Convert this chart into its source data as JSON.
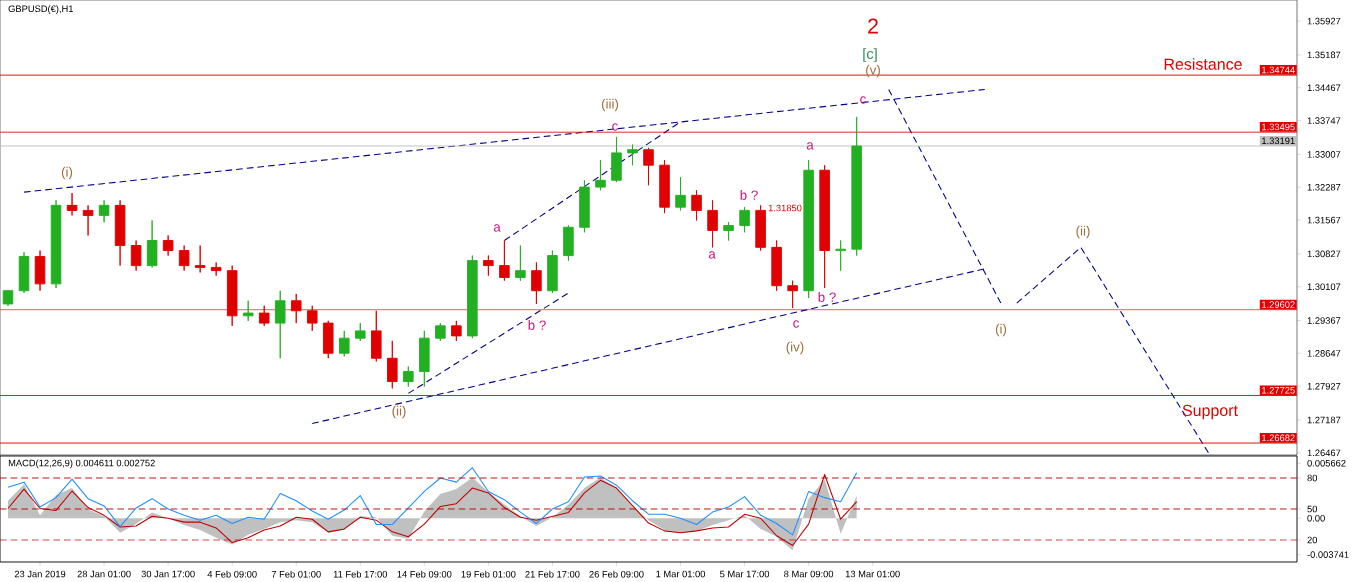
{
  "chart_data": [
    {
      "type": "candlestick",
      "title": "GBPUSD(€),H1",
      "categories": [
        null,
        null,
        null,
        null,
        null,
        null,
        null,
        null,
        null,
        null,
        null,
        null,
        null,
        null,
        null,
        null,
        null,
        null,
        null,
        null,
        null,
        null,
        null,
        null,
        null,
        null,
        null,
        null,
        null,
        null,
        null,
        null,
        null,
        null,
        null,
        null,
        null,
        null,
        null,
        null,
        null,
        null,
        null,
        null,
        null,
        null,
        null,
        null,
        null,
        null,
        null,
        null,
        null,
        null,
        null,
        null,
        null,
        null,
        null,
        null,
        null,
        null,
        null,
        null,
        null,
        null,
        null,
        null,
        null,
        null,
        null,
        null,
        null,
        null,
        null,
        null,
        null,
        null,
        null,
        null,
        null
      ],
      "ohlc": [
        [
          1.2973,
          1.3002,
          1.2969,
          1.3002
        ],
        [
          1.3002,
          1.3086,
          1.2997,
          1.3077
        ],
        [
          1.3077,
          1.309,
          1.3002,
          1.3017
        ],
        [
          1.3017,
          1.32,
          1.3008,
          1.3189
        ],
        [
          1.3189,
          1.3216,
          1.3167,
          1.3178
        ],
        [
          1.3178,
          1.3189,
          1.3123,
          1.3167
        ],
        [
          1.3167,
          1.32,
          1.3152,
          1.3189
        ],
        [
          1.3189,
          1.32,
          1.3057,
          1.3101
        ],
        [
          1.3101,
          1.3112,
          1.3046,
          1.3057
        ],
        [
          1.3057,
          1.3156,
          1.3053,
          1.3112
        ],
        [
          1.3112,
          1.3123,
          1.3079,
          1.309
        ],
        [
          1.309,
          1.3101,
          1.3046,
          1.3057
        ],
        [
          1.3057,
          1.3101,
          1.3042,
          1.3053
        ],
        [
          1.3053,
          1.3064,
          1.3035,
          1.3046
        ],
        [
          1.3046,
          1.3057,
          1.2925,
          1.2947
        ],
        [
          1.2947,
          1.298,
          1.2936,
          1.2953
        ],
        [
          1.2953,
          1.2969,
          1.2925,
          1.2931
        ],
        [
          1.2931,
          1.3002,
          1.2854,
          1.298
        ],
        [
          1.298,
          1.2995,
          1.2931,
          1.2958
        ],
        [
          1.2958,
          1.2969,
          1.2914,
          1.2931
        ],
        [
          1.2931,
          1.2936,
          1.2854,
          1.2865
        ],
        [
          1.2865,
          1.2914,
          1.2858,
          1.2898
        ],
        [
          1.2898,
          1.2931,
          1.2892,
          1.2914
        ],
        [
          1.2914,
          1.2958,
          1.2847,
          1.2854
        ],
        [
          1.2854,
          1.2892,
          1.2788,
          1.2803
        ],
        [
          1.2803,
          1.2836,
          1.2792,
          1.2825
        ],
        [
          1.2825,
          1.2914,
          1.2792,
          1.2898
        ],
        [
          1.2898,
          1.2931,
          1.2892,
          1.2925
        ],
        [
          1.2925,
          1.2936,
          1.2892,
          1.2903
        ],
        [
          1.2903,
          1.3079,
          1.2898,
          1.3068
        ],
        [
          1.3068,
          1.3079,
          1.3035,
          1.3057
        ],
        [
          1.3057,
          1.3112,
          1.3024,
          1.3031
        ],
        [
          1.3031,
          1.3101,
          1.3024,
          1.3046
        ],
        [
          1.3046,
          1.3064,
          1.2973,
          1.3002
        ],
        [
          1.3002,
          1.309,
          1.2997,
          1.3079
        ],
        [
          1.3079,
          1.3145,
          1.3068,
          1.3141
        ],
        [
          1.3141,
          1.3244,
          1.313,
          1.3229
        ],
        [
          1.3229,
          1.3288,
          1.3222,
          1.3244
        ],
        [
          1.3244,
          1.3339,
          1.324,
          1.3304
        ],
        [
          1.3304,
          1.3322,
          1.3277,
          1.3311
        ],
        [
          1.3311,
          1.3315,
          1.3233,
          1.3277
        ],
        [
          1.3277,
          1.3288,
          1.3172,
          1.3185
        ],
        [
          1.3185,
          1.3251,
          1.3178,
          1.3211
        ],
        [
          1.3211,
          1.3222,
          1.3156,
          1.3178
        ],
        [
          1.3178,
          1.32,
          1.3097,
          1.3134
        ],
        [
          1.3134,
          1.3152,
          1.3112,
          1.3145
        ],
        [
          1.3145,
          1.3185,
          1.313,
          1.3178
        ],
        [
          1.3178,
          1.3189,
          1.309,
          1.3097
        ],
        [
          1.3097,
          1.3112,
          1.3002,
          1.3013
        ],
        [
          1.3013,
          1.3024,
          1.2964,
          1.3002
        ],
        [
          1.3002,
          1.3288,
          1.2986,
          1.3266
        ],
        [
          1.3266,
          1.3277,
          1.3008,
          1.309
        ],
        [
          1.309,
          1.3112,
          1.3046,
          1.3093
        ],
        [
          1.3093,
          1.3383,
          1.3079,
          1.3319
        ],
        null,
        null,
        null,
        null,
        null,
        null,
        null,
        null,
        null,
        null,
        null,
        null,
        null,
        null,
        null,
        null,
        null,
        null,
        null,
        null,
        null,
        null,
        null,
        null,
        null,
        null,
        null
      ],
      "ylim": [
        1.2642,
        1.3639
      ],
      "yticks": [
        1.35927,
        1.35187,
        1.34467,
        1.33747,
        1.33007,
        1.32287,
        1.31567,
        1.30827,
        1.30107,
        1.29367,
        1.28647,
        1.27927,
        1.27187,
        1.26467
      ],
      "tick_labels": "y",
      "line_style": "dashed",
      "series": [
        {
          "type": "line",
          "color": "#00008b",
          "values": [
            null,
            1.3218,
            null,
            null,
            null,
            null,
            null,
            null,
            null,
            null,
            null,
            null,
            null,
            null,
            null,
            null,
            null,
            null,
            null,
            null,
            null,
            null,
            null,
            null,
            null,
            null,
            null,
            null,
            null,
            null,
            null,
            null,
            null,
            null,
            null,
            null,
            null,
            null,
            null,
            null,
            null,
            null,
            null,
            null,
            null,
            null,
            null,
            null,
            null,
            null,
            null,
            null,
            null,
            null,
            null,
            null,
            null,
            null,
            null,
            null,
            null,
            1.3443,
            null,
            null,
            null,
            null,
            null,
            null,
            null,
            null,
            null,
            null,
            null,
            null,
            null,
            null,
            null,
            null,
            null,
            null,
            null
          ]
        },
        {
          "type": "line",
          "color": "#00008b",
          "values": [
            null,
            null,
            null,
            null,
            null,
            null,
            null,
            null,
            null,
            null,
            null,
            null,
            null,
            null,
            null,
            null,
            null,
            null,
            null,
            1.2711,
            null,
            null,
            null,
            null,
            null,
            null,
            null,
            null,
            null,
            null,
            null,
            null,
            null,
            null,
            null,
            null,
            null,
            null,
            null,
            null,
            null,
            null,
            null,
            null,
            null,
            null,
            null,
            null,
            null,
            null,
            null,
            null,
            null,
            null,
            null,
            null,
            null,
            null,
            null,
            null,
            null,
            1.305,
            null,
            null,
            null,
            null,
            null,
            null,
            null,
            null,
            null,
            null,
            null,
            null,
            null,
            null,
            null,
            null,
            null,
            null,
            null
          ]
        },
        {
          "type": "line",
          "color": "#00008b",
          "values": [
            null,
            null,
            null,
            null,
            null,
            null,
            null,
            null,
            null,
            null,
            null,
            null,
            null,
            null,
            null,
            null,
            null,
            null,
            null,
            null,
            null,
            null,
            null,
            null,
            null,
            1.2777,
            null,
            null,
            null,
            null,
            null,
            null,
            null,
            null,
            null,
            1.2997,
            null,
            null,
            null,
            null,
            null,
            null,
            null,
            null,
            null,
            null,
            null,
            null,
            null,
            null,
            null,
            null,
            null,
            null,
            null,
            null,
            null,
            null,
            null,
            null,
            null,
            null,
            null,
            null,
            null,
            null,
            null,
            null,
            null,
            null,
            null,
            null,
            null,
            null,
            null,
            null,
            null,
            null,
            null,
            null,
            null
          ]
        },
        {
          "type": "line",
          "color": "#00008b",
          "values": [
            null,
            null,
            null,
            null,
            null,
            null,
            null,
            null,
            null,
            null,
            null,
            null,
            null,
            null,
            null,
            null,
            null,
            null,
            null,
            null,
            null,
            null,
            null,
            null,
            null,
            null,
            null,
            null,
            null,
            null,
            null,
            1.3112,
            null,
            null,
            null,
            null,
            null,
            null,
            null,
            null,
            null,
            null,
            1.3372,
            null,
            null,
            null,
            null,
            null,
            null,
            null,
            null,
            null,
            null,
            null,
            null,
            null,
            null,
            null,
            null,
            null,
            null,
            null,
            null,
            null,
            null,
            null,
            null,
            null,
            null,
            null,
            null,
            null,
            null,
            null,
            null,
            null,
            null,
            null,
            null,
            null,
            null
          ]
        },
        {
          "type": "line",
          "color": "#00008b",
          "values": [
            null,
            null,
            null,
            null,
            null,
            null,
            null,
            null,
            null,
            null,
            null,
            null,
            null,
            null,
            null,
            null,
            null,
            null,
            null,
            null,
            null,
            null,
            null,
            null,
            null,
            null,
            null,
            null,
            null,
            null,
            null,
            null,
            null,
            null,
            null,
            null,
            null,
            null,
            null,
            null,
            null,
            null,
            null,
            null,
            null,
            null,
            null,
            null,
            null,
            null,
            null,
            null,
            null,
            null,
            null,
            1.3443,
            null,
            null,
            null,
            null,
            null,
            null,
            1.2975,
            null,
            null,
            null,
            null,
            null,
            null,
            null,
            null,
            null,
            null,
            null,
            null,
            null,
            null,
            null,
            null,
            null,
            null
          ]
        },
        {
          "type": "line",
          "color": "#00008b",
          "values": [
            null,
            null,
            null,
            null,
            null,
            null,
            null,
            null,
            null,
            null,
            null,
            null,
            null,
            null,
            null,
            null,
            null,
            null,
            null,
            null,
            null,
            null,
            null,
            null,
            null,
            null,
            null,
            null,
            null,
            null,
            null,
            null,
            null,
            null,
            null,
            null,
            null,
            null,
            null,
            null,
            null,
            null,
            null,
            null,
            null,
            null,
            null,
            null,
            null,
            null,
            null,
            null,
            null,
            null,
            null,
            null,
            null,
            null,
            null,
            null,
            null,
            null,
            null,
            1.2975,
            null,
            null,
            null,
            1.3097,
            null,
            null,
            null,
            null,
            null,
            null,
            null,
            1.2645,
            null,
            null,
            null,
            null,
            null
          ]
        }
      ],
      "ref_lines": [
        {
          "axis": "y",
          "value": 1.34744,
          "label": "1.34744",
          "color": "#e00000"
        },
        {
          "axis": "y",
          "value": 1.33495,
          "label": "1.33495",
          "color": "#e00000"
        },
        {
          "axis": "y",
          "value": 1.33191,
          "label": "1.33191",
          "color": "#c0c0c0"
        },
        {
          "axis": "y",
          "value": 1.29602,
          "label": "1.29602",
          "color": "#e00000"
        },
        {
          "axis": "y",
          "value": 1.27725,
          "label": "1.27725",
          "color": "#e00000"
        },
        {
          "axis": "y",
          "value": 1.26682,
          "label": "1.26682",
          "color": "#e00000"
        }
      ],
      "annotations": [
        "2",
        "[c]",
        "(v)",
        "c",
        "(i)",
        "(ii)",
        "(iii)",
        "c",
        "a",
        "b ?",
        "a",
        "b ?",
        "1.31850",
        "c",
        "(iv)",
        "a",
        "b ?",
        "(i)",
        "(ii)",
        "Resistance",
        "Support"
      ]
    },
    {
      "type": "line",
      "title": "MACD(12,26,9) 0.004611 0.002752",
      "categories": [
        null,
        null,
        "23 Jan 2019",
        null,
        null,
        null,
        "28 Jan 01:00",
        null,
        null,
        null,
        "30 Jan 17:00",
        null,
        null,
        null,
        "4 Feb 09:00",
        null,
        null,
        null,
        "7 Feb 01:00",
        null,
        null,
        null,
        "11 Feb 17:00",
        null,
        null,
        null,
        "14 Feb 09:00",
        null,
        null,
        null,
        "19 Feb 01:00",
        null,
        null,
        null,
        "21 Feb 17:00",
        null,
        null,
        null,
        "26 Feb 09:00",
        null,
        null,
        null,
        "1 Mar 01:00",
        null,
        null,
        null,
        "5 Mar 17:00",
        null,
        null,
        null,
        "8 Mar 09:00",
        null,
        null,
        null,
        "13 Mar 01:00",
        null,
        null,
        null,
        null,
        null,
        null,
        null,
        null,
        null,
        null,
        null,
        null,
        null,
        null,
        null,
        null,
        null,
        null,
        null,
        null,
        null,
        null,
        null,
        null,
        null,
        null
      ],
      "ylim": [
        -0.0045,
        0.0064
      ],
      "yticks": [
        0.005662,
        {
          "value": 0,
          "label": "0.00"
        },
        -0.003741
      ],
      "series": [
        {
          "type": "area",
          "color": "#c0c0c0",
          "values": [
            0.0018,
            0.0035,
            0.0003,
            0.0024,
            0.0031,
            0.0009,
            0.0002,
            -0.0015,
            -0.0006,
            0.0006,
            0.0,
            -0.0007,
            -0.0012,
            -0.002,
            -0.0027,
            -0.0017,
            -0.0011,
            -0.0004,
            -0.0002,
            -0.0004,
            -0.0015,
            -0.0012,
            0.0002,
            0.0001,
            -0.0018,
            -0.0021,
            0.0007,
            0.0025,
            0.003,
            0.0042,
            0.0027,
            0.0014,
            0.0002,
            -0.0008,
            0.0001,
            0.0014,
            0.0031,
            0.0042,
            0.0031,
            0.0012,
            -0.0002,
            -0.0012,
            -0.0015,
            -0.0013,
            -0.0007,
            -0.0002,
            0.0003,
            -0.0011,
            -0.0019,
            -0.0033,
            0.002,
            0.004,
            -0.0016,
            0.0023,
            null,
            null,
            null,
            null,
            null,
            null,
            null,
            null,
            null,
            null,
            null,
            null,
            null,
            null,
            null,
            null,
            null,
            null,
            null,
            null,
            null,
            null,
            null,
            null,
            null,
            null,
            null
          ]
        },
        {
          "type": "line",
          "color": "#c00000",
          "values": [
            0.001,
            0.003,
            0.001,
            0.0008,
            0.0028,
            0.0011,
            0.0003,
            -0.0009,
            -0.0008,
            0.0002,
            0.0,
            -0.0004,
            -0.0004,
            -0.001,
            -0.0025,
            -0.002,
            -0.0012,
            -0.0008,
            0.0001,
            -0.0001,
            -0.0014,
            -0.0011,
            0.0001,
            -0.0002,
            -0.0014,
            -0.0019,
            -0.0006,
            0.0012,
            0.0015,
            0.0031,
            0.0026,
            0.0011,
            0.0001,
            -0.0002,
            0.0002,
            0.0006,
            0.0026,
            0.0039,
            0.0031,
            0.0013,
            -0.0005,
            -0.0013,
            -0.0015,
            -0.0013,
            -0.001,
            -0.0009,
            0.0004,
            0.0,
            -0.0018,
            -0.0028,
            -0.0006,
            0.0045,
            -0.0001,
            0.0017,
            null,
            null,
            null,
            null,
            null,
            null,
            null,
            null,
            null,
            null,
            null,
            null,
            null,
            null,
            null,
            null,
            null,
            null,
            null,
            null,
            null,
            null,
            null,
            null,
            null,
            null,
            null
          ]
        }
      ]
    },
    {
      "type": "line",
      "categories": [
        null,
        null,
        null,
        null,
        null,
        null,
        null,
        null,
        null,
        null,
        null,
        null,
        null,
        null,
        null,
        null,
        null,
        null,
        null,
        null,
        null,
        null,
        null,
        null,
        null,
        null,
        null,
        null,
        null,
        null,
        null,
        null,
        null,
        null,
        null,
        null,
        null,
        null,
        null,
        null,
        null,
        null,
        null,
        null,
        null,
        null,
        null,
        null,
        null,
        null,
        null,
        null,
        null,
        null,
        null,
        null,
        null,
        null,
        null,
        null,
        null,
        null,
        null,
        null,
        null,
        null,
        null,
        null,
        null,
        null,
        null,
        null,
        null,
        null,
        null,
        null,
        null,
        null,
        null,
        null,
        null
      ],
      "tick_labels": "y",
      "ylim": [
        -1.3,
        101.3
      ],
      "yticks": [
        80,
        50,
        20
      ],
      "series": [
        {
          "color": "#1e90ff",
          "values": [
            71,
            76,
            52,
            61,
            79,
            60,
            53,
            33,
            51,
            60,
            50,
            44,
            39,
            44,
            36,
            42,
            40,
            65,
            58,
            48,
            40,
            49,
            63,
            35,
            35,
            51,
            67,
            80,
            76,
            90,
            67,
            59,
            47,
            36,
            50,
            57,
            81,
            82,
            73,
            58,
            45,
            45,
            41,
            35,
            47,
            52,
            62,
            44,
            36,
            25,
            67,
            61,
            57,
            85,
            null,
            null,
            null,
            null,
            null,
            null,
            null,
            null,
            null,
            null,
            null,
            null,
            null,
            null,
            null,
            null,
            null,
            null,
            null,
            null,
            null,
            null,
            null,
            null,
            null,
            null,
            null
          ]
        }
      ],
      "ref_lines": [
        {
          "axis": "y",
          "value": 80,
          "color": "#c00000",
          "line_style": "dashed"
        },
        {
          "axis": "y",
          "value": 50,
          "color": "#c00000",
          "line_style": "dashed"
        },
        {
          "axis": "y",
          "value": 20,
          "color": "#c00000",
          "line_style": "dashed"
        }
      ]
    }
  ]
}
